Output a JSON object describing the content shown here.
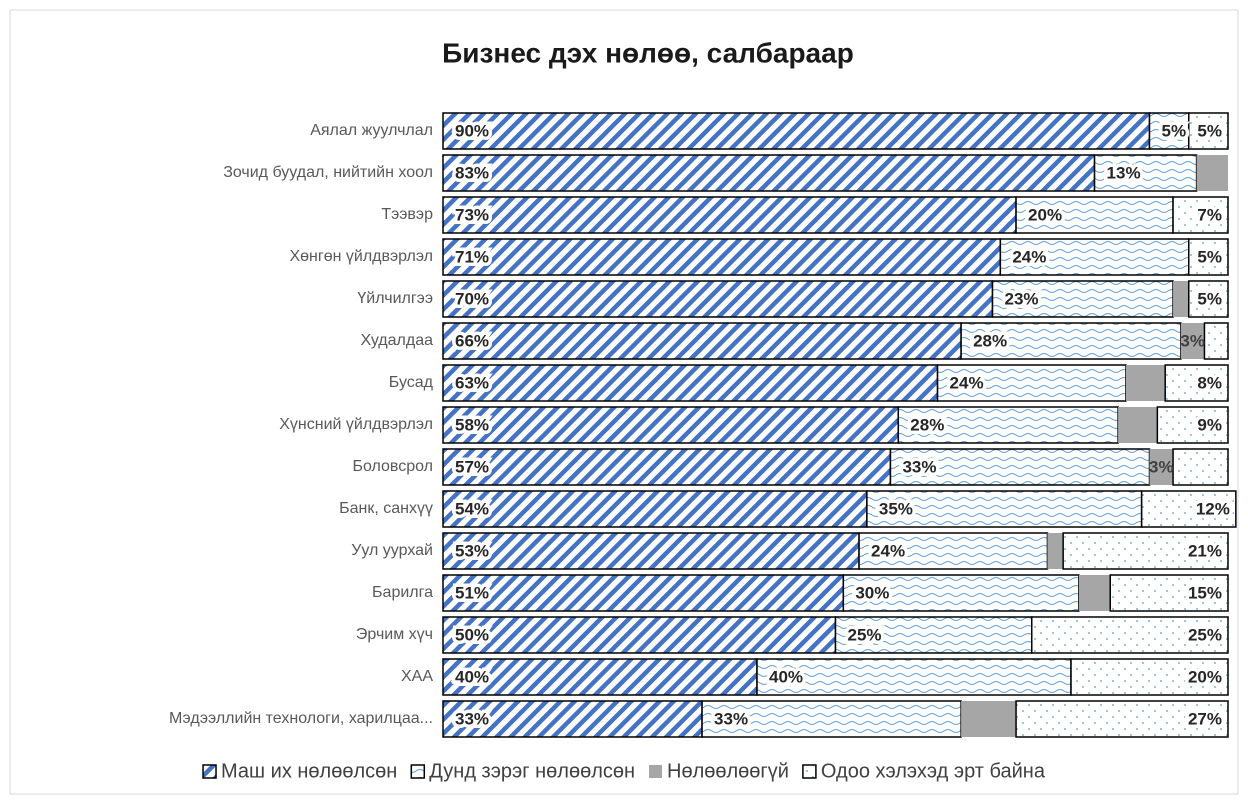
{
  "chart_data": {
    "type": "stacked-bar-horizontal",
    "title": "Бизнес дэх нөлөө, салбараар",
    "categories": [
      "Аялал жуулчлал",
      "Зочид буудал, нийтийн хоол",
      "Тээвэр",
      "Хөнгөн үйлдвэрлэл",
      "Үйлчилгээ",
      "Худалдаа",
      "Бусад",
      "Хүнсний үйлдвэрлэл",
      "Боловсрол",
      "Банк, санхүү",
      "Уул уурхай",
      "Барилга",
      "Эрчим хүч",
      "ХАА",
      "Мэдээллийн технологи, харилцаа..."
    ],
    "xlim": [
      0,
      100
    ],
    "legend": "bottom",
    "series": [
      {
        "name": "Маш их нөлөөлсөн",
        "color": "#4472c4",
        "values": [
          90,
          83,
          73,
          71,
          70,
          66,
          63,
          58,
          57,
          54,
          53,
          51,
          50,
          40,
          33
        ],
        "value_labels": [
          "90%",
          "83%",
          "73%",
          "71%",
          "70%",
          "66%",
          "63%",
          "58%",
          "57%",
          "54%",
          "53%",
          "51%",
          "50%",
          "40%",
          "33%"
        ]
      },
      {
        "name": "Дунд зэрэг нөлөөлсөн",
        "color": "#5b9bd5",
        "values": [
          5,
          13,
          20,
          24,
          23,
          28,
          24,
          28,
          33,
          35,
          24,
          30,
          25,
          40,
          33
        ],
        "value_labels": [
          "5%",
          "13%",
          "20%",
          "24%",
          "23%",
          "28%",
          "24%",
          "28%",
          "33%",
          "35%",
          "24%",
          "30%",
          "25%",
          "40%",
          "33%"
        ]
      },
      {
        "name": "Нөлөөлөөгүй",
        "color": "#a6a6a6",
        "values": [
          0,
          4,
          0,
          0,
          2,
          3,
          5,
          5,
          3,
          0,
          2,
          4,
          0,
          0,
          7
        ],
        "value_labels": [
          null,
          null,
          null,
          null,
          null,
          "3%",
          null,
          null,
          "3%",
          null,
          null,
          null,
          null,
          null,
          null
        ]
      },
      {
        "name": "Одоо хэлэхэд эрт байна",
        "color": "#ffffff",
        "values": [
          5,
          0,
          7,
          5,
          5,
          3,
          8,
          9,
          7,
          12,
          21,
          15,
          25,
          20,
          27
        ],
        "value_labels": [
          "5%",
          null,
          "7%",
          "5%",
          "5%",
          null,
          "8%",
          "9%",
          null,
          "12%",
          "21%",
          "15%",
          "25%",
          "20%",
          "27%"
        ]
      }
    ]
  }
}
